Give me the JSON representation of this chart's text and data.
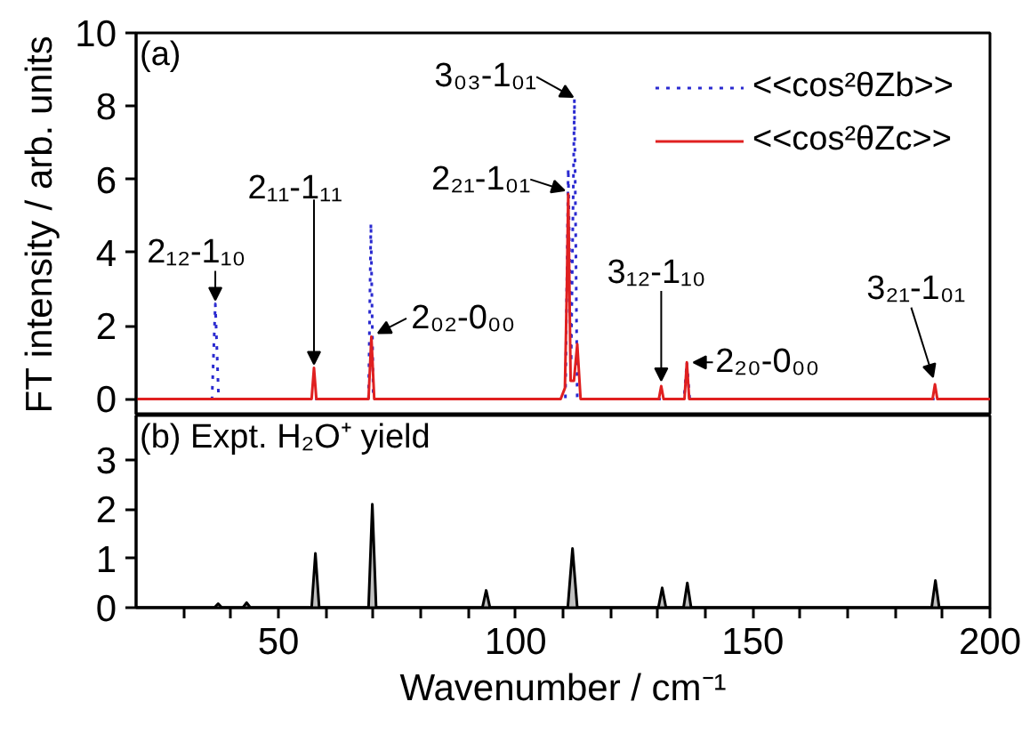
{
  "chart_data": [
    {
      "type": "line",
      "ylabel": "FT intensity / arb. units",
      "xlim": [
        20,
        200
      ],
      "ylim": [
        -0.45,
        10
      ],
      "yticks": [
        0,
        2,
        4,
        6,
        8,
        10
      ],
      "tick_labels": "y",
      "legend": "top right",
      "series": [
        {
          "name": "<<cos²θZb>>",
          "color": "#2a2ad0",
          "line_style": "dotted",
          "x": [
            20,
            36,
            36.7,
            37.4,
            69,
            69.5,
            70,
            110.5,
            111.1,
            111.7,
            112.4,
            113.0,
            135.5,
            136.1,
            136.7,
            200
          ],
          "values": [
            0,
            0,
            2.6,
            0,
            0,
            4.8,
            0,
            0,
            6.3,
            1,
            8.2,
            0,
            0,
            1.0,
            0,
            0
          ]
        },
        {
          "name": "<<cos²θZc>>",
          "color": "#e02020",
          "line_style": "solid",
          "x": [
            20,
            57,
            57.5,
            58,
            69,
            69.6,
            70.2,
            109.5,
            110.4,
            110.8,
            111.1,
            111.6,
            112.3,
            113,
            113.7,
            130.2,
            130.7,
            131.2,
            135.6,
            136.1,
            136.6,
            187.9,
            188.4,
            188.9,
            200
          ],
          "values": [
            0,
            0,
            0.85,
            0,
            0,
            1.7,
            0,
            0,
            0.3,
            3,
            5.6,
            0.5,
            0.5,
            1.5,
            0,
            0,
            0.35,
            0,
            0,
            1.0,
            0,
            0,
            0.4,
            0,
            0
          ]
        }
      ],
      "annotations": [
        "(a)",
        {
          "text": "2₁₂-1₁₀",
          "x": 36.7,
          "y": 2.6
        },
        {
          "text": "2₁₁-1₁₁",
          "x": 57.5,
          "y": 0.85
        },
        {
          "text": "2₀₂-0₀₀",
          "x": 70,
          "y": 1.7
        },
        {
          "text": "3₀₃-1₀₁",
          "x": 112.4,
          "y": 8.2
        },
        {
          "text": "2₂₁-1₀₁",
          "x": 111.1,
          "y": 5.6
        },
        {
          "text": "3₁₂-1₁₀",
          "x": 130.7,
          "y": 0.35
        },
        {
          "text": "2₂₀-0₀₀",
          "x": 136.1,
          "y": 1.0
        },
        {
          "text": "3₂₁-1₀₁",
          "x": 188.4,
          "y": 0.4
        }
      ]
    },
    {
      "type": "area",
      "xlabel": "Wavenumber / cm⁻¹",
      "xlim": [
        20,
        200
      ],
      "ylim": [
        0,
        3.9
      ],
      "yticks": [
        0,
        1,
        2,
        3
      ],
      "xticks": [
        {
          "value": 30,
          "label": null
        },
        {
          "value": 40,
          "label": null
        },
        50,
        {
          "value": 60,
          "label": null
        },
        {
          "value": 70,
          "label": null
        },
        {
          "value": 80,
          "label": null
        },
        {
          "value": 90,
          "label": null
        },
        100,
        {
          "value": 110,
          "label": null
        },
        {
          "value": 120,
          "label": null
        },
        {
          "value": 130,
          "label": null
        },
        {
          "value": 140,
          "label": null
        },
        150,
        {
          "value": 160,
          "label": null
        },
        {
          "value": 170,
          "label": null
        },
        {
          "value": 180,
          "label": null
        },
        {
          "value": 190,
          "label": null
        },
        200
      ],
      "series": [
        {
          "color": "#000000",
          "x": [
            20,
            36.5,
            37.3,
            38.1,
            42.5,
            43.3,
            44.1,
            57,
            57.8,
            58.6,
            69,
            69.8,
            70.6,
            93,
            93.8,
            94.6,
            110,
            111,
            112,
            113,
            114,
            130.1,
            130.9,
            131.7,
            135.4,
            136.2,
            137,
            187.7,
            188.5,
            189.3,
            200
          ],
          "values": [
            0,
            0,
            0.08,
            0,
            0,
            0.1,
            0,
            0,
            1.1,
            0,
            0,
            2.1,
            0,
            0,
            0.35,
            0,
            0,
            null,
            1.2,
            null,
            0,
            0,
            0.4,
            0,
            0,
            0.5,
            0,
            0,
            0.55,
            0,
            0
          ]
        }
      ],
      "annotations": [
        "(b) Expt. H₂O⁺ yield"
      ]
    }
  ]
}
